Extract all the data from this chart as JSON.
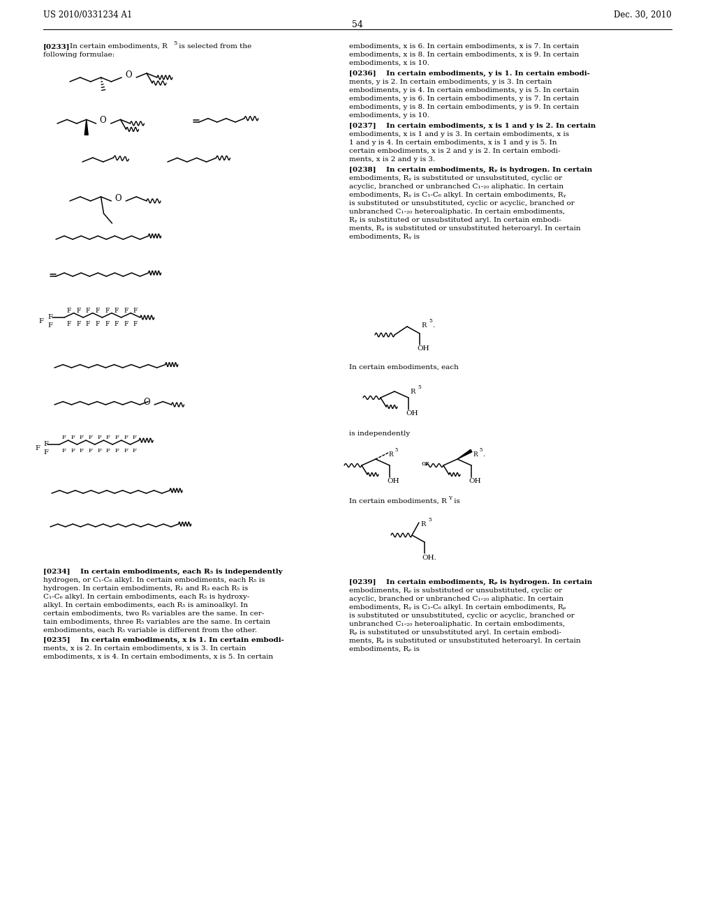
{
  "page_number": "54",
  "patent_number": "US 2010/0331234 A1",
  "patent_date": "Dec. 30, 2010",
  "background_color": "#ffffff",
  "text_color": "#000000"
}
